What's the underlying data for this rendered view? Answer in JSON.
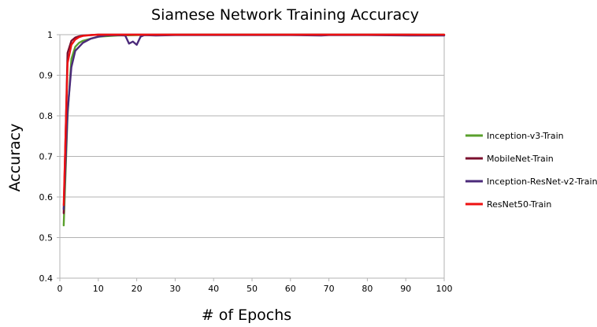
{
  "chart_data": {
    "type": "line",
    "title": "Siamese Network Training Accuracy",
    "xlabel": "# of Epochs",
    "ylabel": "Accuracy",
    "xlim": [
      0,
      100
    ],
    "ylim": [
      0.4,
      1
    ],
    "xticks": [
      0,
      10,
      20,
      30,
      40,
      50,
      60,
      70,
      80,
      90,
      100
    ],
    "yticks": [
      0.4,
      0.5,
      0.6,
      0.7,
      0.8,
      0.9,
      1
    ],
    "ytick_labels": [
      "0.4",
      "0.5",
      "0.6",
      "0.7",
      "0.8",
      "0.9",
      "1"
    ],
    "grid": "horizontal",
    "legend_position": "right",
    "series": [
      {
        "name": "Inception-v3-Train",
        "color": "#5aa02c",
        "points": [
          [
            1,
            0.53
          ],
          [
            2,
            0.8
          ],
          [
            3,
            0.94
          ],
          [
            4,
            0.97
          ],
          [
            5,
            0.98
          ],
          [
            6,
            0.985
          ],
          [
            8,
            0.99
          ],
          [
            10,
            0.995
          ],
          [
            15,
            0.998
          ],
          [
            20,
            0.999
          ],
          [
            30,
            1.0
          ],
          [
            40,
            1.0
          ],
          [
            50,
            1.0
          ],
          [
            60,
            1.0
          ],
          [
            70,
            1.0
          ],
          [
            80,
            1.0
          ],
          [
            90,
            1.0
          ],
          [
            100,
            1.0
          ]
        ]
      },
      {
        "name": "MobileNet-Train",
        "color": "#7b0f2e",
        "points": [
          [
            1,
            0.56
          ],
          [
            2,
            0.955
          ],
          [
            3,
            0.985
          ],
          [
            4,
            0.993
          ],
          [
            5,
            0.996
          ],
          [
            6,
            0.998
          ],
          [
            8,
            0.999
          ],
          [
            10,
            1.0
          ],
          [
            20,
            1.0
          ],
          [
            30,
            1.0
          ],
          [
            40,
            1.0
          ],
          [
            50,
            1.0
          ],
          [
            60,
            1.0
          ],
          [
            70,
            1.0
          ],
          [
            80,
            1.0
          ],
          [
            90,
            1.0
          ],
          [
            100,
            0.999
          ]
        ]
      },
      {
        "name": "Inception-ResNet-v2-Train",
        "color": "#4b2a7a",
        "points": [
          [
            1,
            0.57
          ],
          [
            2,
            0.81
          ],
          [
            3,
            0.92
          ],
          [
            4,
            0.96
          ],
          [
            5,
            0.97
          ],
          [
            6,
            0.98
          ],
          [
            8,
            0.99
          ],
          [
            10,
            0.995
          ],
          [
            12,
            0.998
          ],
          [
            15,
            0.999
          ],
          [
            17,
            0.998
          ],
          [
            18,
            0.978
          ],
          [
            19,
            0.983
          ],
          [
            20,
            0.975
          ],
          [
            21,
            0.995
          ],
          [
            22,
            0.999
          ],
          [
            25,
            0.998
          ],
          [
            30,
            0.999
          ],
          [
            40,
            0.999
          ],
          [
            50,
            0.999
          ],
          [
            60,
            0.999
          ],
          [
            68,
            0.998
          ],
          [
            70,
            0.999
          ],
          [
            80,
            0.999
          ],
          [
            91,
            0.998
          ],
          [
            100,
            0.998
          ]
        ]
      },
      {
        "name": "ResNet50-Train",
        "color": "#ee1111",
        "points": [
          [
            1,
            0.58
          ],
          [
            2,
            0.93
          ],
          [
            3,
            0.975
          ],
          [
            4,
            0.988
          ],
          [
            5,
            0.994
          ],
          [
            6,
            0.997
          ],
          [
            8,
            0.999
          ],
          [
            10,
            1.0
          ],
          [
            20,
            1.0
          ],
          [
            30,
            1.0
          ],
          [
            40,
            1.0
          ],
          [
            50,
            1.0
          ],
          [
            60,
            1.0
          ],
          [
            70,
            1.0
          ],
          [
            80,
            1.0
          ],
          [
            90,
            1.0
          ],
          [
            100,
            1.0
          ]
        ]
      }
    ]
  }
}
